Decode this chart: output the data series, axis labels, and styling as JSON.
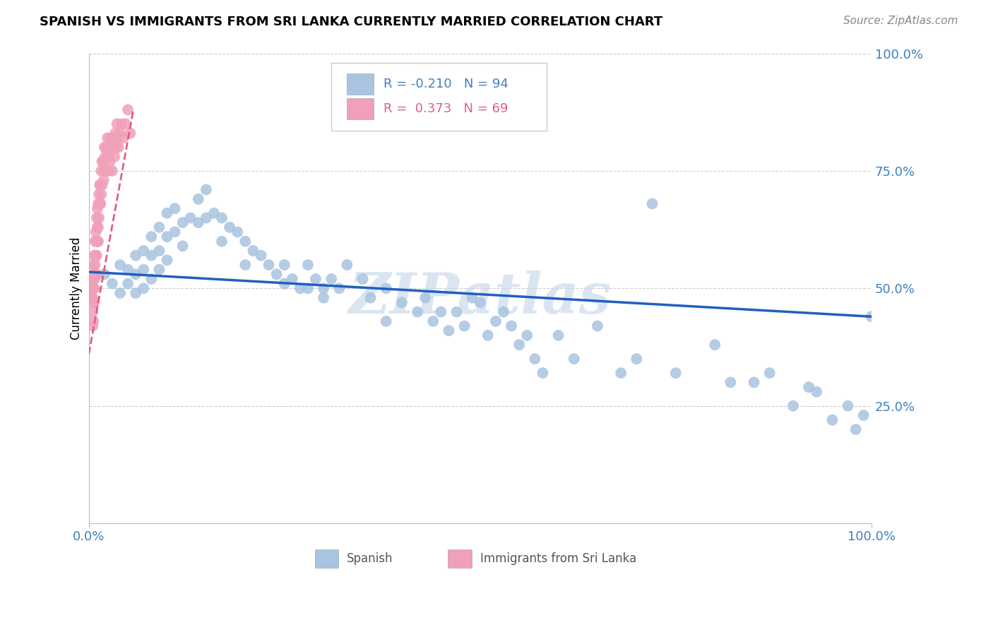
{
  "title": "SPANISH VS IMMIGRANTS FROM SRI LANKA CURRENTLY MARRIED CORRELATION CHART",
  "source": "Source: ZipAtlas.com",
  "ylabel": "Currently Married",
  "R_spanish": -0.21,
  "N_spanish": 94,
  "R_srilanka": 0.373,
  "N_srilanka": 69,
  "blue_dot_color": "#a8c4e0",
  "blue_line_color": "#2060c0",
  "pink_dot_color": "#f0a0b8",
  "pink_line_color": "#e06080",
  "tick_color": "#4080c0",
  "grid_color": "#cccccc",
  "background_color": "#ffffff",
  "watermark_color": "#c8d8ec",
  "legend_label1": "Spanish",
  "legend_label2": "Immigrants from Sri Lanka",
  "xlim": [
    0.0,
    1.0
  ],
  "ylim": [
    0.0,
    1.0
  ],
  "yticks": [
    0.0,
    0.25,
    0.5,
    0.75,
    1.0
  ],
  "ytick_labels": [
    "",
    "25.0%",
    "50.0%",
    "75.0%",
    "100.0%"
  ],
  "xtick_label_left": "0.0%",
  "xtick_label_right": "100.0%",
  "spanish_x": [
    0.02,
    0.03,
    0.04,
    0.04,
    0.05,
    0.05,
    0.06,
    0.06,
    0.06,
    0.07,
    0.07,
    0.07,
    0.08,
    0.08,
    0.08,
    0.09,
    0.09,
    0.09,
    0.1,
    0.1,
    0.1,
    0.11,
    0.11,
    0.12,
    0.12,
    0.13,
    0.14,
    0.14,
    0.15,
    0.15,
    0.16,
    0.17,
    0.17,
    0.18,
    0.19,
    0.2,
    0.2,
    0.21,
    0.22,
    0.23,
    0.24,
    0.25,
    0.25,
    0.26,
    0.27,
    0.28,
    0.28,
    0.29,
    0.3,
    0.3,
    0.31,
    0.32,
    0.33,
    0.35,
    0.36,
    0.38,
    0.38,
    0.4,
    0.42,
    0.43,
    0.44,
    0.45,
    0.46,
    0.47,
    0.48,
    0.49,
    0.5,
    0.51,
    0.52,
    0.53,
    0.54,
    0.55,
    0.56,
    0.57,
    0.58,
    0.6,
    0.62,
    0.65,
    0.68,
    0.7,
    0.72,
    0.75,
    0.8,
    0.82,
    0.85,
    0.87,
    0.9,
    0.92,
    0.93,
    0.95,
    0.97,
    0.98,
    0.99,
    1.0
  ],
  "spanish_y": [
    0.53,
    0.51,
    0.55,
    0.49,
    0.54,
    0.51,
    0.57,
    0.53,
    0.49,
    0.58,
    0.54,
    0.5,
    0.61,
    0.57,
    0.52,
    0.63,
    0.58,
    0.54,
    0.66,
    0.61,
    0.56,
    0.67,
    0.62,
    0.64,
    0.59,
    0.65,
    0.69,
    0.64,
    0.71,
    0.65,
    0.66,
    0.65,
    0.6,
    0.63,
    0.62,
    0.6,
    0.55,
    0.58,
    0.57,
    0.55,
    0.53,
    0.55,
    0.51,
    0.52,
    0.5,
    0.55,
    0.5,
    0.52,
    0.5,
    0.48,
    0.52,
    0.5,
    0.55,
    0.52,
    0.48,
    0.43,
    0.5,
    0.47,
    0.45,
    0.48,
    0.43,
    0.45,
    0.41,
    0.45,
    0.42,
    0.48,
    0.47,
    0.4,
    0.43,
    0.45,
    0.42,
    0.38,
    0.4,
    0.35,
    0.32,
    0.4,
    0.35,
    0.42,
    0.32,
    0.35,
    0.68,
    0.32,
    0.38,
    0.3,
    0.3,
    0.32,
    0.25,
    0.29,
    0.28,
    0.22,
    0.25,
    0.2,
    0.23,
    0.44
  ],
  "srilanka_x": [
    0.003,
    0.004,
    0.004,
    0.005,
    0.005,
    0.005,
    0.005,
    0.006,
    0.006,
    0.006,
    0.006,
    0.007,
    0.007,
    0.007,
    0.007,
    0.008,
    0.008,
    0.008,
    0.009,
    0.009,
    0.009,
    0.01,
    0.01,
    0.01,
    0.01,
    0.011,
    0.011,
    0.011,
    0.012,
    0.012,
    0.012,
    0.013,
    0.013,
    0.014,
    0.014,
    0.015,
    0.015,
    0.016,
    0.016,
    0.017,
    0.017,
    0.018,
    0.019,
    0.02,
    0.02,
    0.021,
    0.022,
    0.023,
    0.024,
    0.025,
    0.025,
    0.026,
    0.027,
    0.028,
    0.03,
    0.03,
    0.032,
    0.033,
    0.034,
    0.035,
    0.036,
    0.037,
    0.038,
    0.04,
    0.042,
    0.044,
    0.047,
    0.05,
    0.053
  ],
  "srilanka_y": [
    0.5,
    0.48,
    0.52,
    0.52,
    0.48,
    0.45,
    0.42,
    0.55,
    0.5,
    0.47,
    0.43,
    0.57,
    0.53,
    0.5,
    0.47,
    0.6,
    0.55,
    0.52,
    0.62,
    0.57,
    0.53,
    0.65,
    0.6,
    0.57,
    0.53,
    0.67,
    0.63,
    0.6,
    0.68,
    0.63,
    0.6,
    0.7,
    0.65,
    0.72,
    0.68,
    0.72,
    0.68,
    0.75,
    0.7,
    0.77,
    0.72,
    0.77,
    0.73,
    0.8,
    0.75,
    0.78,
    0.8,
    0.75,
    0.82,
    0.78,
    0.75,
    0.8,
    0.77,
    0.82,
    0.8,
    0.75,
    0.82,
    0.78,
    0.83,
    0.8,
    0.85,
    0.82,
    0.8,
    0.83,
    0.85,
    0.82,
    0.85,
    0.88,
    0.83
  ],
  "blue_line_x": [
    0.0,
    1.0
  ],
  "blue_line_y": [
    0.535,
    0.44
  ],
  "pink_line_x_start": 0.0,
  "pink_line_x_end": 0.057,
  "pink_line_y_start": 0.36,
  "pink_line_y_end": 0.88
}
